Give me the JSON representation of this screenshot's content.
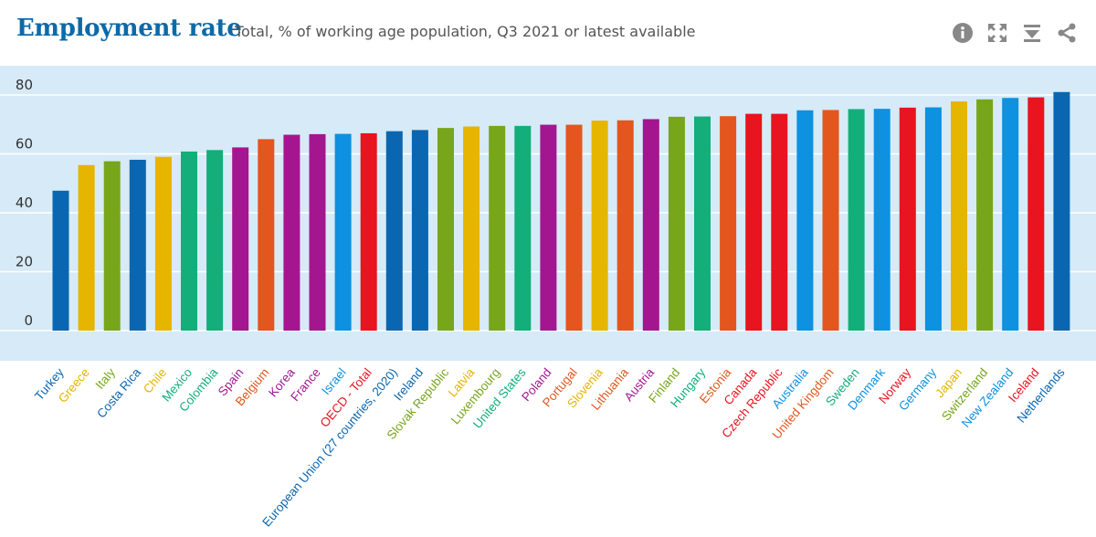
{
  "header": {
    "title": "Employment rate",
    "subtitle": "Total, % of working age population, Q3 2021 or latest available"
  },
  "toolbar": {
    "icons": [
      "info-icon",
      "fullscreen-icon",
      "download-icon",
      "share-icon"
    ]
  },
  "colors": {
    "plot_background": "#d6eaf7",
    "title": "#0b6aa8",
    "icon": "#888888"
  },
  "chart_data": {
    "type": "bar",
    "title": "Employment rate",
    "subtitle": "Total, % of working age population, Q3 2021 or latest available",
    "xlabel": "",
    "ylabel": "",
    "ylim": [
      -10,
      90
    ],
    "yticks": [
      0,
      20,
      40,
      60,
      80
    ],
    "grid": true,
    "legend": "none",
    "categories": [
      "Turkey",
      "Greece",
      "Italy",
      "Costa Rica",
      "Chile",
      "Mexico",
      "Colombia",
      "Spain",
      "Belgium",
      "Korea",
      "France",
      "Israel",
      "OECD - Total",
      "European Union (27 countries, 2020)",
      "Ireland",
      "Slovak Republic",
      "Latvia",
      "Luxembourg",
      "United States",
      "Poland",
      "Portugal",
      "Slovenia",
      "Lithuania",
      "Austria",
      "Finland",
      "Hungary",
      "Estonia",
      "Canada",
      "Czech Republic",
      "Australia",
      "United Kingdom",
      "Sweden",
      "Denmark",
      "Norway",
      "Germany",
      "Japan",
      "Switzerland",
      "New Zealand",
      "Iceland",
      "Netherlands"
    ],
    "values": [
      47.5,
      56.2,
      57.5,
      58.0,
      59.0,
      60.8,
      61.3,
      62.2,
      65.0,
      66.5,
      66.7,
      66.8,
      67.0,
      67.7,
      68.1,
      68.8,
      69.3,
      69.5,
      69.5,
      69.9,
      69.9,
      71.3,
      71.4,
      71.8,
      72.6,
      72.7,
      72.8,
      73.6,
      73.6,
      74.8,
      74.9,
      75.2,
      75.3,
      75.7,
      75.8,
      77.8,
      78.5,
      79.0,
      79.2,
      81.0
    ],
    "bar_colors": [
      "#0a66b0",
      "#e5b500",
      "#77a61a",
      "#0a66b0",
      "#e5b500",
      "#13ae79",
      "#13ae79",
      "#a3168f",
      "#e3561d",
      "#a3168f",
      "#a3168f",
      "#0d91e0",
      "#e8141f",
      "#0a66b0",
      "#0a66b0",
      "#77a61a",
      "#e5b500",
      "#77a61a",
      "#13ae79",
      "#a3168f",
      "#e3561d",
      "#e5b500",
      "#e3561d",
      "#a3168f",
      "#77a61a",
      "#13ae79",
      "#e3561d",
      "#e8141f",
      "#e8141f",
      "#0d91e0",
      "#e3561d",
      "#13ae79",
      "#0d91e0",
      "#e8141f",
      "#0d91e0",
      "#e5b500",
      "#77a61a",
      "#0d91e0",
      "#e8141f",
      "#0a66b0"
    ]
  }
}
